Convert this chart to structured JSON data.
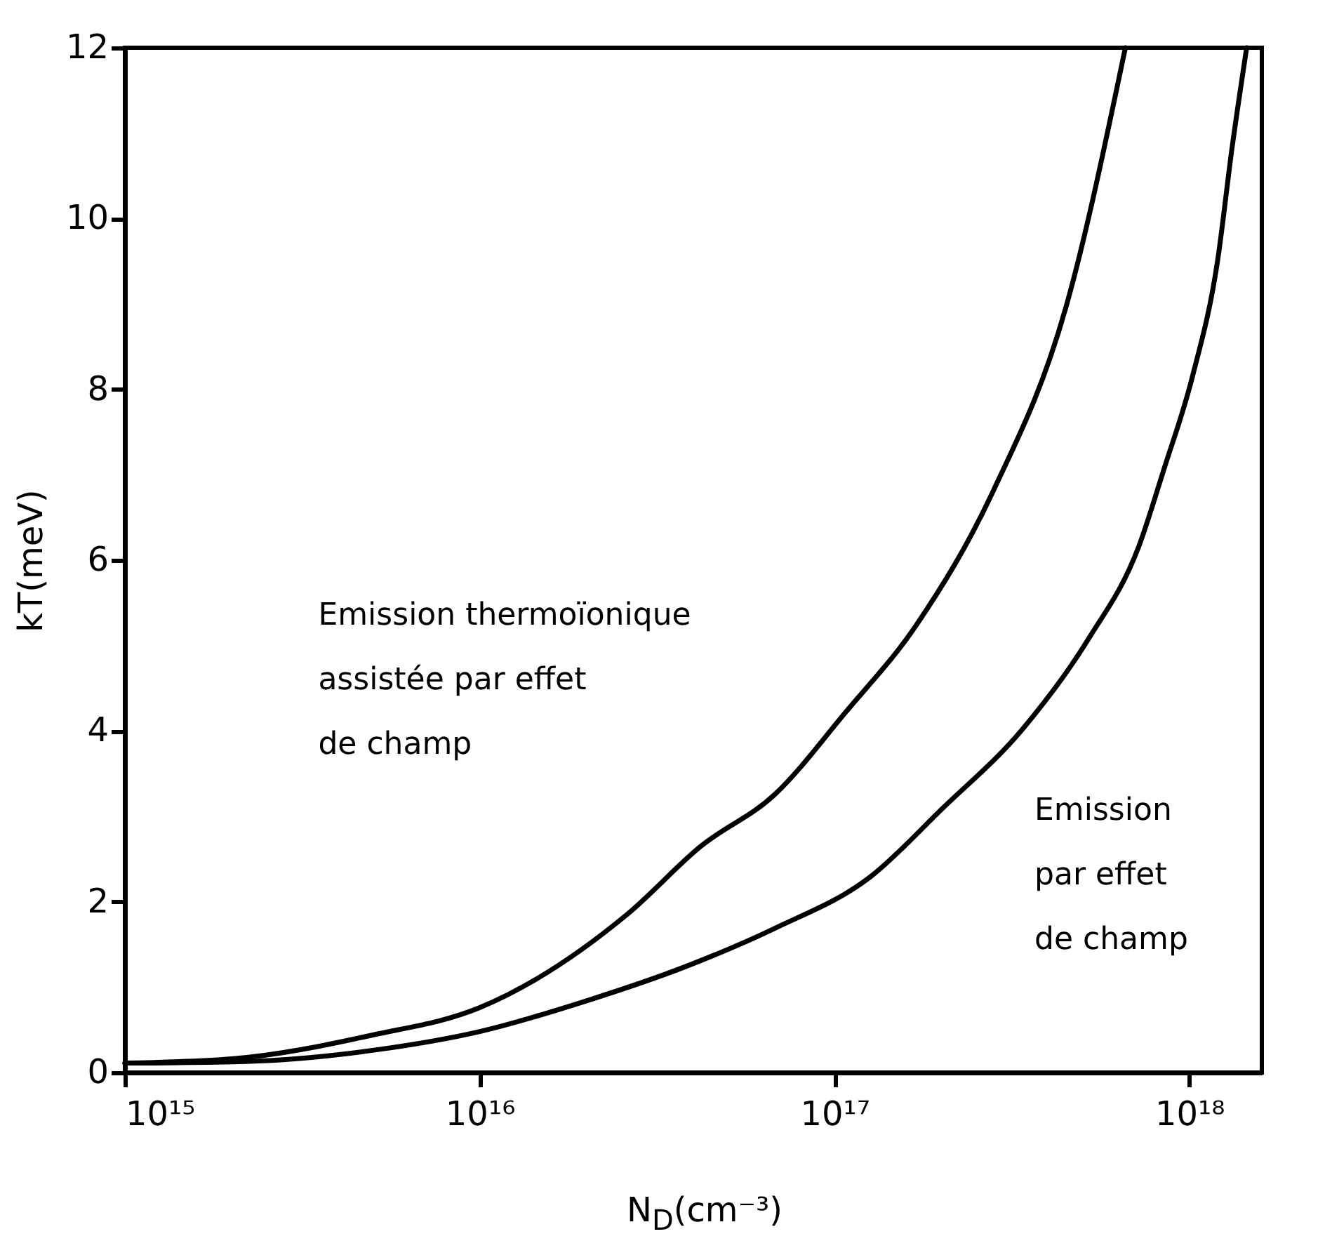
{
  "chart_data": {
    "type": "line",
    "xlabel": "N$_{D}$(cm⁻³)",
    "ylabel": "kT(meV)",
    "log": "x",
    "xlim": [
      1000000000000000.0,
      1.6e+18
    ],
    "ylim": [
      0,
      12
    ],
    "xticks": [
      {
        "value": 1000000000000000.0,
        "label": "10¹⁵"
      },
      {
        "value": 1e+16,
        "label": "10¹⁶"
      },
      {
        "value": 1e+17,
        "label": "10¹⁷"
      },
      {
        "value": 1e+18,
        "label": "10¹⁸"
      }
    ],
    "yticks": [
      0,
      2,
      4,
      6,
      8,
      10,
      12
    ],
    "series": [
      {
        "color": "#000000",
        "x": [
          1000000000000000.0,
          2000000000000000.0,
          5000000000000000.0,
          1e+16,
          2.6e+16,
          4.2e+16,
          6.8e+16,
          1.07e+17,
          1.7e+17,
          2.8e+17,
          4.5e+17,
          6.6e+17
        ],
        "values": [
          0.11,
          0.16,
          0.44,
          0.76,
          1.85,
          2.65,
          3.26,
          4.21,
          5.24,
          6.81,
          8.98,
          12
        ]
      },
      {
        "color": "#000000",
        "x": [
          1000000000000000.0,
          2200000000000000.0,
          5200000000000000.0,
          1e+16,
          2e+16,
          3.8e+16,
          6.8e+16,
          1.26e+17,
          2e+17,
          3.4e+17,
          5.2e+17,
          7.2e+17,
          8.5e+17,
          1.02e+18,
          1.2e+18,
          1.32e+18,
          1.45e+18
        ],
        "values": [
          0.11,
          0.13,
          0.27,
          0.48,
          0.84,
          1.24,
          1.69,
          2.29,
          3.08,
          4.03,
          5.08,
          6.16,
          7.08,
          8.15,
          9.5,
          10.84,
          12
        ]
      }
    ],
    "annotations": [
      "Emission thermoïonique\nassistée par effet\nde champ",
      "Emission\npar effet\nde champ"
    ]
  }
}
